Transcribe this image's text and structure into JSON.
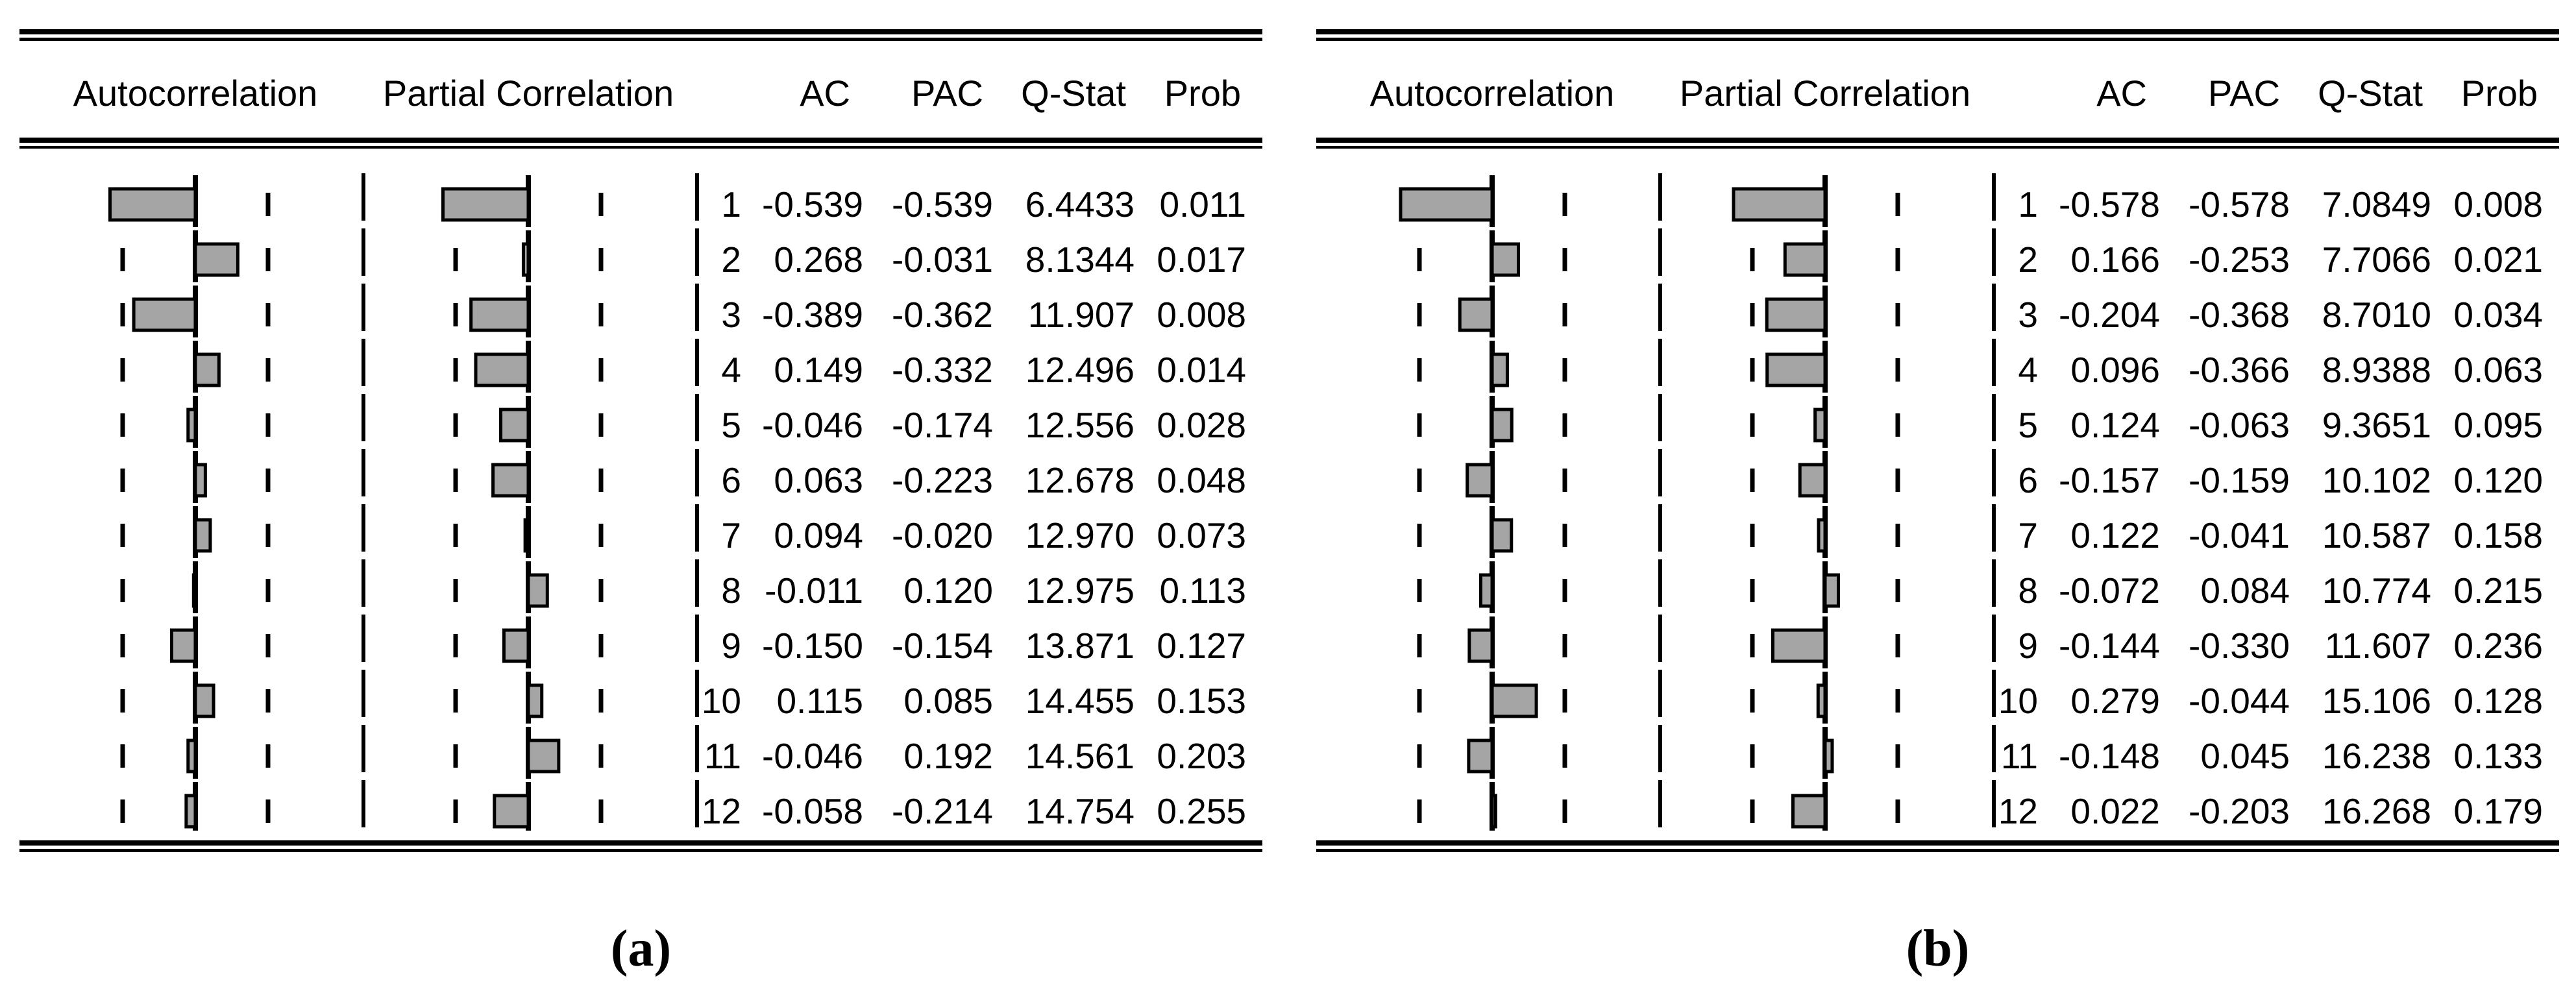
{
  "headers": {
    "autocorrelation": "Autocorrelation",
    "partial_correlation": "Partial Correlation",
    "ac": "AC",
    "pac": "PAC",
    "qstat": "Q-Stat",
    "prob": "Prob"
  },
  "colors": {
    "bar_fill": "#a5a5a5",
    "line": "#000000"
  },
  "chart_data": [
    {
      "type": "bar",
      "panel_label": "(a)",
      "orientation": "horizontal",
      "axis_range": [
        -1,
        1
      ],
      "se_bound": 0.46,
      "legend": [
        "Autocorrelation",
        "Partial Correlation"
      ],
      "columns": [
        "lag",
        "AC",
        "PAC",
        "Q-Stat",
        "Prob"
      ],
      "rows": [
        [
          "1",
          "-0.539",
          "-0.539",
          "6.4433",
          "0.011"
        ],
        [
          "2",
          "0.268",
          "-0.031",
          "8.1344",
          "0.017"
        ],
        [
          "3",
          "-0.389",
          "-0.362",
          "11.907",
          "0.008"
        ],
        [
          "4",
          "0.149",
          "-0.332",
          "12.496",
          "0.014"
        ],
        [
          "5",
          "-0.046",
          "-0.174",
          "12.556",
          "0.028"
        ],
        [
          "6",
          "0.063",
          "-0.223",
          "12.678",
          "0.048"
        ],
        [
          "7",
          "0.094",
          "-0.020",
          "12.970",
          "0.073"
        ],
        [
          "8",
          "-0.011",
          "0.120",
          "12.975",
          "0.113"
        ],
        [
          "9",
          "-0.150",
          "-0.154",
          "13.871",
          "0.127"
        ],
        [
          "10",
          "0.115",
          "0.085",
          "14.455",
          "0.153"
        ],
        [
          "11",
          "-0.046",
          "0.192",
          "14.561",
          "0.203"
        ],
        [
          "12",
          "-0.058",
          "-0.214",
          "14.754",
          "0.255"
        ]
      ]
    },
    {
      "type": "bar",
      "panel_label": "(b)",
      "orientation": "horizontal",
      "axis_range": [
        -1,
        1
      ],
      "se_bound": 0.47,
      "legend": [
        "Autocorrelation",
        "Partial Correlation"
      ],
      "columns": [
        "lag",
        "AC",
        "PAC",
        "Q-Stat",
        "Prob"
      ],
      "rows": [
        [
          "1",
          "-0.578",
          "-0.578",
          "7.0849",
          "0.008"
        ],
        [
          "2",
          "0.166",
          "-0.253",
          "7.7066",
          "0.021"
        ],
        [
          "3",
          "-0.204",
          "-0.368",
          "8.7010",
          "0.034"
        ],
        [
          "4",
          "0.096",
          "-0.366",
          "8.9388",
          "0.063"
        ],
        [
          "5",
          "0.124",
          "-0.063",
          "9.3651",
          "0.095"
        ],
        [
          "6",
          "-0.157",
          "-0.159",
          "10.102",
          "0.120"
        ],
        [
          "7",
          "0.122",
          "-0.041",
          "10.587",
          "0.158"
        ],
        [
          "8",
          "-0.072",
          "0.084",
          "10.774",
          "0.215"
        ],
        [
          "9",
          "-0.144",
          "-0.330",
          "11.607",
          "0.236"
        ],
        [
          "10",
          "0.279",
          "-0.044",
          "15.106",
          "0.128"
        ],
        [
          "11",
          "-0.148",
          "0.045",
          "16.238",
          "0.133"
        ],
        [
          "12",
          "0.022",
          "-0.203",
          "16.268",
          "0.179"
        ]
      ]
    }
  ]
}
